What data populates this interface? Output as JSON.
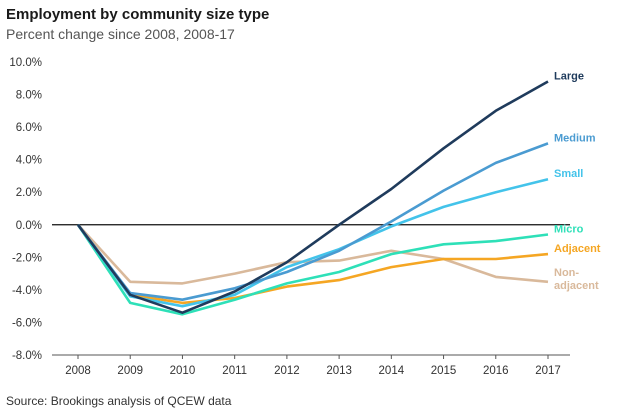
{
  "title": "Employment by community size type",
  "subtitle": "Percent change since 2008, 2008-17",
  "source": "Source: Brookings analysis of QCEW data",
  "chart_data": {
    "type": "line",
    "x": [
      "2008",
      "2009",
      "2010",
      "2011",
      "2012",
      "2013",
      "2014",
      "2015",
      "2016",
      "2017"
    ],
    "ylim": [
      -8,
      10
    ],
    "yticks": [
      -8,
      -6,
      -4,
      -2,
      0,
      2,
      4,
      6,
      8,
      10
    ],
    "ytick_labels": [
      "-8.0%",
      "-6.0%",
      "-4.0%",
      "-2.0%",
      "0.0%",
      "2.0%",
      "4.0%",
      "6.0%",
      "8.0%",
      "10.0%"
    ],
    "zero_line": true,
    "grid": false,
    "series": [
      {
        "name": "Large",
        "color": "#1f3b5c",
        "label_lines": [
          "Large"
        ],
        "values": [
          0,
          -4.3,
          -5.4,
          -4.1,
          -2.3,
          0.0,
          2.2,
          4.7,
          7.0,
          8.8
        ]
      },
      {
        "name": "Medium",
        "color": "#4a9bd1",
        "label_lines": [
          "Medium"
        ],
        "values": [
          0,
          -4.2,
          -4.6,
          -3.9,
          -2.9,
          -1.6,
          0.2,
          2.1,
          3.8,
          5.0
        ]
      },
      {
        "name": "Small",
        "color": "#43c3ea",
        "label_lines": [
          "Small"
        ],
        "values": [
          0,
          -4.4,
          -5.0,
          -4.3,
          -2.6,
          -1.5,
          -0.1,
          1.1,
          2.0,
          2.8
        ]
      },
      {
        "name": "Micro",
        "color": "#2ee0b8",
        "label_lines": [
          "Micro"
        ],
        "values": [
          0,
          -4.8,
          -5.5,
          -4.6,
          -3.6,
          -2.9,
          -1.8,
          -1.2,
          -1.0,
          -0.6
        ]
      },
      {
        "name": "Adjacent",
        "color": "#f5a623",
        "label_lines": [
          "Adjacent"
        ],
        "values": [
          0,
          -4.3,
          -4.8,
          -4.5,
          -3.8,
          -3.4,
          -2.6,
          -2.1,
          -2.1,
          -1.8
        ]
      },
      {
        "name": "Non-adjacent",
        "color": "#d9b99b",
        "label_lines": [
          "Non-",
          "adjacent"
        ],
        "values": [
          0,
          -3.5,
          -3.6,
          -3.0,
          -2.3,
          -2.2,
          -1.6,
          -2.1,
          -3.2,
          -3.5
        ]
      }
    ]
  }
}
